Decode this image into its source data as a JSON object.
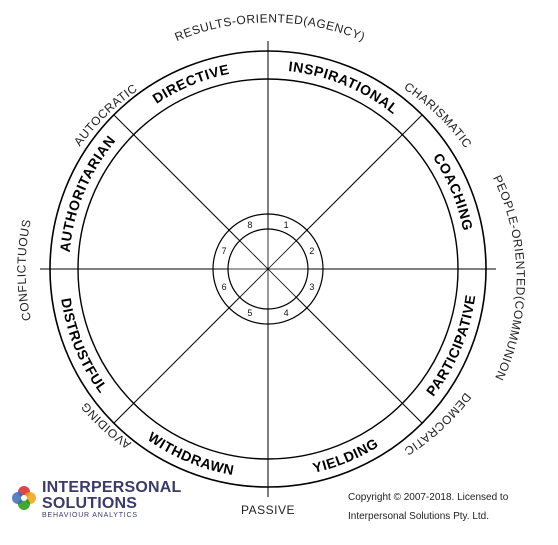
{
  "diagram": {
    "axis_top": "RESULTS-ORIENTED(AGENCY)",
    "axis_bottom": "PASSIVE",
    "axis_left": "CONFLICTUOUS",
    "axis_right": "PEOPLE-ORIENTED(COMMUNION)",
    "diagonals": {
      "top_left": "AUTOCRATIC",
      "top_right": "CHARISMATIC",
      "bottom_left": "AVOIDING",
      "bottom_right": "DEMOCRATIC"
    },
    "segments": [
      {
        "label": "INSPIRATIONAL",
        "number": "1",
        "color": "#1e9b0e"
      },
      {
        "label": "COACHING",
        "number": "2",
        "color": "#1e9b0e"
      },
      {
        "label": "PARTICIPATIVE",
        "number": "3",
        "color": "#1e9b0e"
      },
      {
        "label": "YIELDING",
        "number": "4",
        "color": "#f0a215"
      },
      {
        "label": "WITHDRAWN",
        "number": "5",
        "color": "#b31507"
      },
      {
        "label": "DISTRUSTFUL",
        "number": "6",
        "color": "#b31507"
      },
      {
        "label": "AUTHORITARIAN",
        "number": "7",
        "color": "#b31507"
      },
      {
        "label": "DIRECTIVE",
        "number": "8",
        "color": "#f0a215"
      }
    ]
  },
  "logo": {
    "line1": "INTERPERSONAL",
    "line2": "SOLUTIONS",
    "tagline": "BEHAVIOUR ANALYTICS"
  },
  "copyright": {
    "line1": "Copyright © 2007-2018. Licensed to",
    "line2": "Interpersonal Solutions Pty. Ltd."
  }
}
